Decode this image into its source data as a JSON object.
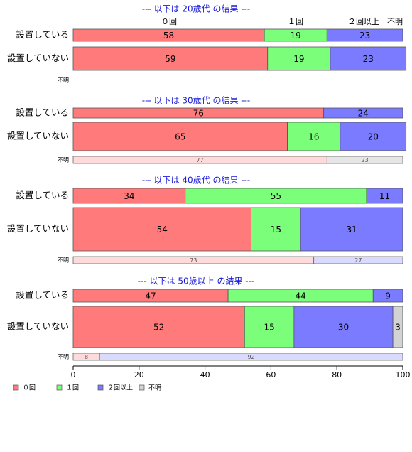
{
  "colors": {
    "c0": "#ff7b7b",
    "c1": "#7bff7b",
    "c2": "#7b7bff",
    "cu": "#d3d3d3",
    "title": "#1a1adb",
    "edge": "#555555"
  },
  "chart_data": {
    "type": "bar",
    "orientation": "horizontal",
    "stacked": true,
    "xlim": [
      0,
      100
    ],
    "xticks": [
      "0",
      "20",
      "40",
      "60",
      "80",
      "100"
    ],
    "legend": {
      "position": "bottom-left",
      "entries": [
        "０回",
        "１回",
        "２回以上",
        "不明"
      ]
    },
    "column_headers": [
      "０回",
      "１回",
      "２回以上",
      "不明"
    ],
    "groups": [
      {
        "title": "--- 以下は 20歳代 の結果 ---",
        "rows": [
          {
            "label": "設置している",
            "values": [
              58,
              19,
              23,
              0
            ]
          },
          {
            "label": "設置していない",
            "values": [
              59,
              19,
              23,
              0
            ]
          }
        ],
        "unknown": {
          "label": "不明",
          "values": []
        }
      },
      {
        "title": "--- 以下は 30歳代 の結果 ---",
        "rows": [
          {
            "label": "設置している",
            "values": [
              76,
              0,
              24,
              0
            ]
          },
          {
            "label": "設置していない",
            "values": [
              65,
              16,
              20,
              0
            ]
          }
        ],
        "unknown": {
          "label": "不明",
          "values": [
            77,
            0,
            0,
            23
          ]
        }
      },
      {
        "title": "--- 以下は 40歳代 の結果 ---",
        "rows": [
          {
            "label": "設置している",
            "values": [
              34,
              55,
              11,
              0
            ]
          },
          {
            "label": "設置していない",
            "values": [
              54,
              15,
              31,
              0
            ]
          }
        ],
        "unknown": {
          "label": "不明",
          "values": [
            73,
            0,
            27,
            0
          ]
        }
      },
      {
        "title": "--- 以下は 50歳以上 の結果 ---",
        "rows": [
          {
            "label": "設置している",
            "values": [
              47,
              44,
              9,
              0
            ]
          },
          {
            "label": "設置していない",
            "values": [
              52,
              15,
              30,
              3
            ]
          }
        ],
        "unknown": {
          "label": "不明",
          "values": [
            8,
            0,
            92,
            0
          ]
        }
      }
    ]
  }
}
